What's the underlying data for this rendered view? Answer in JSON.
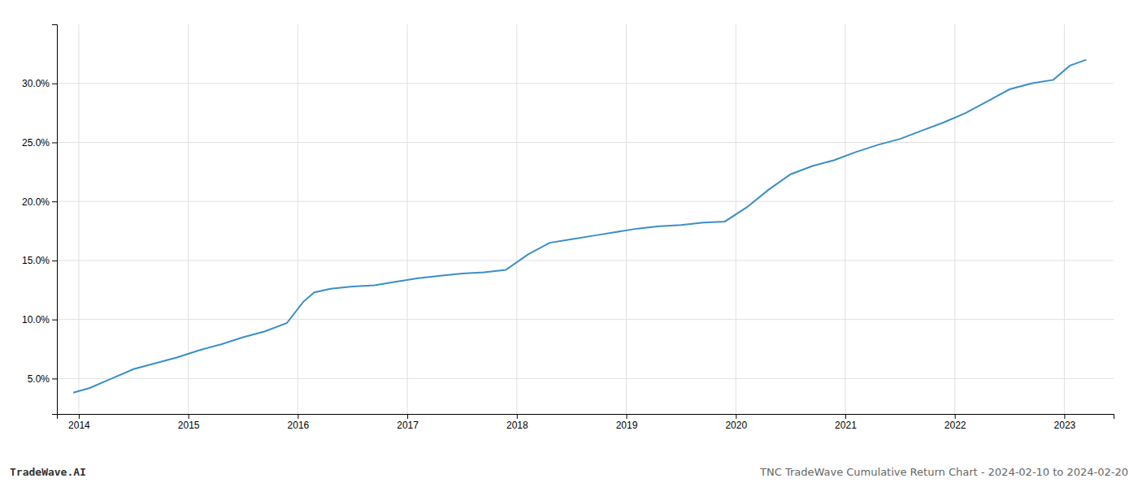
{
  "chart_data": {
    "type": "line",
    "title": "TNC TradeWave Cumulative Return Chart - 2024-02-10 to 2024-02-20",
    "annotations": [
      "TradeWave.AI"
    ],
    "color": "#3a8fc8",
    "x": [
      2013.95,
      2014.1,
      2014.3,
      2014.5,
      2014.7,
      2014.9,
      2015.1,
      2015.3,
      2015.5,
      2015.7,
      2015.9,
      2016.05,
      2016.15,
      2016.3,
      2016.5,
      2016.7,
      2016.9,
      2017.1,
      2017.3,
      2017.5,
      2017.7,
      2017.9,
      2018.1,
      2018.3,
      2018.5,
      2018.7,
      2018.9,
      2019.1,
      2019.3,
      2019.5,
      2019.7,
      2019.9,
      2020.1,
      2020.3,
      2020.5,
      2020.7,
      2020.9,
      2021.1,
      2021.3,
      2021.5,
      2021.7,
      2021.9,
      2022.1,
      2022.3,
      2022.5,
      2022.7,
      2022.9,
      2023.05,
      2023.2
    ],
    "values": [
      3.8,
      4.2,
      5.0,
      5.8,
      6.3,
      6.8,
      7.4,
      7.9,
      8.5,
      9.0,
      9.7,
      11.5,
      12.3,
      12.6,
      12.8,
      12.9,
      13.2,
      13.5,
      13.7,
      13.9,
      14.0,
      14.2,
      15.5,
      16.5,
      16.8,
      17.1,
      17.4,
      17.7,
      17.9,
      18.0,
      18.2,
      18.3,
      19.5,
      21.0,
      22.3,
      23.0,
      23.5,
      24.2,
      24.8,
      25.3,
      26.0,
      26.7,
      27.5,
      28.5,
      29.5,
      30.0,
      30.3,
      31.5,
      32.0
    ],
    "xlim": [
      2013.8,
      2023.45
    ],
    "ylim": [
      2.0,
      35.0
    ],
    "xticks": [
      2014,
      2015,
      2016,
      2017,
      2018,
      2019,
      2020,
      2021,
      2022,
      2023
    ],
    "yticks": [
      {
        "value": 5.0,
        "label": "5.0%"
      },
      {
        "value": 10.0,
        "label": "10.0%"
      },
      {
        "value": 15.0,
        "label": "15.0%"
      },
      {
        "value": 20.0,
        "label": "20.0%"
      },
      {
        "value": 25.0,
        "label": "25.0%"
      },
      {
        "value": 30.0,
        "label": "30.0%"
      }
    ],
    "grid": true
  }
}
